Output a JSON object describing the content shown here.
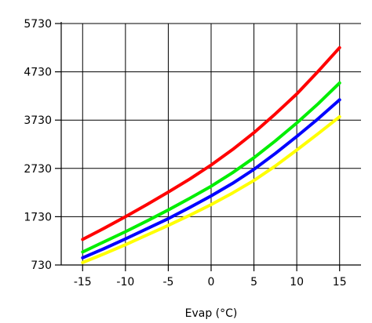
{
  "chart_data": {
    "type": "line",
    "title": "",
    "xlabel": "Evap (°C)",
    "ylabel": "",
    "xlim": [
      -17.5,
      17.5
    ],
    "ylim": [
      730,
      5730
    ],
    "x_ticks": [
      -15,
      -10,
      -5,
      0,
      5,
      10,
      15
    ],
    "x_tick_labels": [
      "-15",
      "-10",
      "-5",
      "0",
      "5",
      "10",
      "15"
    ],
    "y_ticks": [
      730,
      1730,
      2730,
      3730,
      4730,
      5730
    ],
    "y_tick_labels": [
      "730",
      "1730",
      "2730",
      "3730",
      "4730",
      "5730"
    ],
    "grid": true,
    "legend": "none",
    "x": [
      -15,
      -12.5,
      -10,
      -7.5,
      -5,
      -2.5,
      0,
      2.5,
      5,
      7.5,
      10,
      12.5,
      15
    ],
    "series": [
      {
        "color": "#ff0000",
        "values": [
          1260,
          1490,
          1730,
          1980,
          2240,
          2510,
          2800,
          3120,
          3470,
          3860,
          4270,
          4740,
          5230
        ]
      },
      {
        "color": "#00ee00",
        "values": [
          1000,
          1210,
          1420,
          1640,
          1870,
          2110,
          2360,
          2640,
          2950,
          3300,
          3670,
          4070,
          4500
        ]
      },
      {
        "color": "#0000ff",
        "values": [
          880,
          1070,
          1270,
          1480,
          1690,
          1920,
          2160,
          2420,
          2710,
          3040,
          3390,
          3760,
          4150
        ]
      },
      {
        "color": "#ffff00",
        "values": [
          780,
          960,
          1150,
          1350,
          1550,
          1760,
          1980,
          2220,
          2480,
          2780,
          3110,
          3450,
          3800
        ]
      }
    ]
  }
}
